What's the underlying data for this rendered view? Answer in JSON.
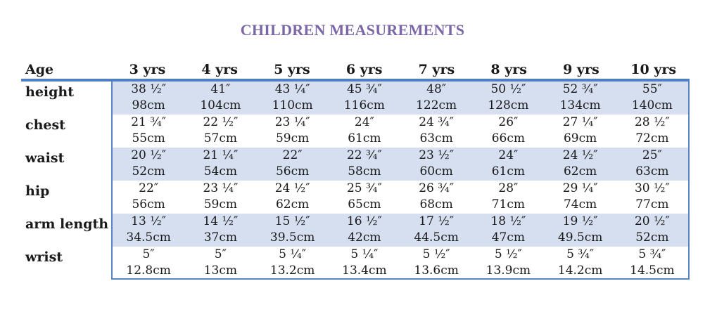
{
  "title": "CHILDREN MEASUREMENTS",
  "header": {
    "age_label": "Age",
    "columns": [
      "3 yrs",
      "4 yrs",
      "5 yrs",
      "6 yrs",
      "7 yrs",
      "8 yrs",
      "9 yrs",
      "10 yrs"
    ]
  },
  "rows": [
    {
      "label": "height",
      "shaded": true,
      "inches": [
        "38 ½″",
        "41″",
        "43 ¼″",
        "45 ¾″",
        "48″",
        "50 ½″",
        "52 ¾″",
        "55″"
      ],
      "cm": [
        "98cm",
        "104cm",
        "110cm",
        "116cm",
        "122cm",
        "128cm",
        "134cm",
        "140cm"
      ]
    },
    {
      "label": "chest",
      "shaded": false,
      "inches": [
        "21 ¾″",
        "22 ½″",
        "23 ¼″",
        "24″",
        "24 ¾″",
        "26″",
        "27 ¼″",
        "28 ½″"
      ],
      "cm": [
        "55cm",
        "57cm",
        "59cm",
        "61cm",
        "63cm",
        "66cm",
        "69cm",
        "72cm"
      ]
    },
    {
      "label": "waist",
      "shaded": true,
      "inches": [
        "20 ½″",
        "21 ¼″",
        "22″",
        "22 ¾″",
        "23 ½″",
        "24″",
        "24 ½″",
        "25″"
      ],
      "cm": [
        "52cm",
        "54cm",
        "56cm",
        "58cm",
        "60cm",
        "61cm",
        "62cm",
        "63cm"
      ]
    },
    {
      "label": "hip",
      "shaded": false,
      "inches": [
        "22″",
        "23 ¼″",
        "24 ½″",
        "25 ¾″",
        "26 ¾″",
        "28″",
        "29 ¼″",
        "30 ½″"
      ],
      "cm": [
        "56cm",
        "59cm",
        "62cm",
        "65cm",
        "68cm",
        "71cm",
        "74cm",
        "77cm"
      ]
    },
    {
      "label": "arm length",
      "shaded": true,
      "inches": [
        "13 ½″",
        "14 ½″",
        "15 ½″",
        "16 ½″",
        "17 ½″",
        "18 ½″",
        "19 ½″",
        "20 ½″"
      ],
      "cm": [
        "34.5cm",
        "37cm",
        "39.5cm",
        "42cm",
        "44.5cm",
        "47cm",
        "49.5cm",
        "52cm"
      ]
    },
    {
      "label": "wrist",
      "shaded": false,
      "inches": [
        "5″",
        "5″",
        "5 ¼″",
        "5 ¼″",
        "5 ½″",
        "5 ½″",
        "5 ¾″",
        "5 ¾″"
      ],
      "cm": [
        "12.8cm",
        "13cm",
        "13.2cm",
        "13.4cm",
        "13.6cm",
        "13.9cm",
        "14.2cm",
        "14.5cm"
      ]
    }
  ],
  "colors": {
    "title": "#7b67a8",
    "rule": "#4f7fc1",
    "shade": "#d5dff0",
    "border": "#5b84c4"
  }
}
